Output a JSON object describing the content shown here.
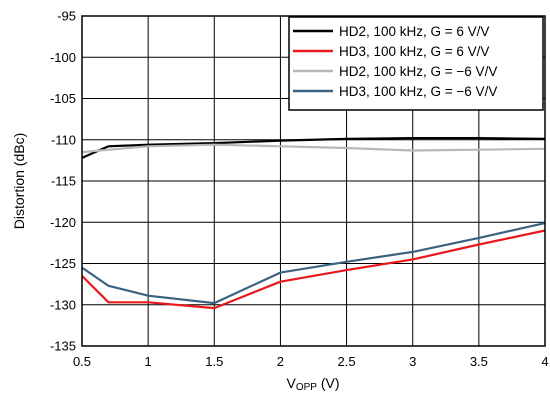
{
  "chart_data": {
    "type": "line",
    "xlabel": "V",
    "xlabel_sub": "OPP",
    "xlabel_unit": " (V)",
    "ylabel": "Distortion (dBc)",
    "xlim": [
      0.5,
      4
    ],
    "ylim": [
      -135,
      -95
    ],
    "xticks": [
      0.5,
      1,
      1.5,
      2,
      2.5,
      3,
      3.5,
      4
    ],
    "xtick_labels": [
      "0.5",
      "1",
      "1.5",
      "2",
      "2.5",
      "3",
      "3.5",
      "4"
    ],
    "yticks": [
      -95,
      -100,
      -105,
      -110,
      -115,
      -120,
      -125,
      -130,
      -135
    ],
    "ytick_labels": [
      "-95",
      "-100",
      "-105",
      "-110",
      "-115",
      "-120",
      "-125",
      "-130",
      "-135"
    ],
    "grid": true,
    "legend_position": "top-right",
    "series": [
      {
        "name": "HD2, 100 kHz, G = 6 V/V",
        "color": "#000000",
        "x": [
          0.5,
          0.7,
          1,
          1.5,
          2,
          2.5,
          3,
          3.5,
          4
        ],
        "y": [
          -112.2,
          -110.8,
          -110.6,
          -110.4,
          -110.1,
          -109.9,
          -109.8,
          -109.8,
          -109.9
        ]
      },
      {
        "name": "HD3, 100 kHz, G = 6 V/V",
        "color": "#e8191c",
        "x": [
          0.5,
          0.7,
          1,
          1.5,
          2,
          2.5,
          3,
          3.5,
          4
        ],
        "y": [
          -126.5,
          -129.7,
          -129.7,
          -130.4,
          -127.2,
          -125.8,
          -124.5,
          -122.7,
          -121.0
        ]
      },
      {
        "name": "HD2, 100 kHz, G = −6 V/V",
        "color": "#b8b8b8",
        "x": [
          0.5,
          1,
          1.5,
          2,
          2.5,
          3,
          3.5,
          4
        ],
        "y": [
          -111.5,
          -110.8,
          -110.6,
          -110.8,
          -111.0,
          -111.3,
          -111.2,
          -111.1
        ]
      },
      {
        "name": "HD3, 100 kHz, G = −6 V/V",
        "color": "#3b6280",
        "x": [
          0.5,
          0.7,
          1,
          1.5,
          2,
          2.5,
          3,
          3.5,
          4
        ],
        "y": [
          -125.5,
          -127.7,
          -128.9,
          -129.8,
          -126.1,
          -124.8,
          -123.6,
          -121.9,
          -120.1
        ]
      }
    ]
  }
}
